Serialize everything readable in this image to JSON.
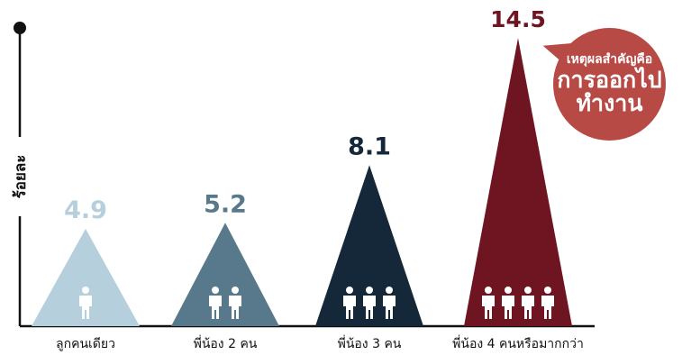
{
  "chart_data": {
    "type": "bar",
    "ylabel": "ร้อยละ",
    "categories": [
      "ลูกคนเดียว",
      "พี่น้อง 2 คน",
      "พี่น้อง 3 คน",
      "พี่น้อง 4 คนหรือมากกว่า"
    ],
    "values": [
      4.9,
      5.2,
      8.1,
      14.5
    ],
    "value_labels": [
      "4.9",
      "5.2",
      "8.1",
      "14.5"
    ],
    "person_icon_counts": [
      1,
      2,
      3,
      4
    ],
    "colors": [
      "#b5cfdc",
      "#58798b",
      "#15283a",
      "#6e1521"
    ],
    "label_colors": [
      "#b5cfdc",
      "#58798b",
      "#15283a",
      "#6e1521"
    ],
    "ylim": [
      0,
      15.5
    ],
    "grid": false
  },
  "callout": {
    "line1": "เหตุผลสำคัญคือ",
    "line2": "การออกไป",
    "line3": "ทำงาน",
    "color": "#b84a46"
  }
}
